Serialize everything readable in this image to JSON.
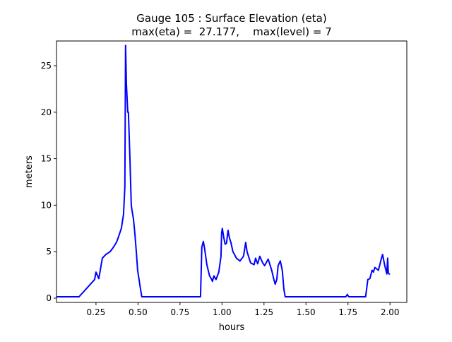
{
  "chart_data": {
    "type": "line",
    "title": "Gauge 105 : Surface Elevation (eta)",
    "subtitle": "max(eta) =  27.177,    max(level) = 7",
    "xlabel": "hours",
    "ylabel": "meters",
    "xlim": [
      0.015,
      2.1
    ],
    "ylim": [
      -0.46,
      27.66
    ],
    "xticks": [
      0.25,
      0.5,
      0.75,
      1.0,
      1.25,
      1.5,
      1.75,
      2.0
    ],
    "xtick_labels": [
      "0.25",
      "0.50",
      "0.75",
      "1.00",
      "1.25",
      "1.50",
      "1.75",
      "2.00"
    ],
    "yticks": [
      0,
      5,
      10,
      15,
      20,
      25
    ],
    "ytick_labels": [
      "0",
      "5",
      "10",
      "15",
      "20",
      "25"
    ],
    "grid": false,
    "series": [
      {
        "name": "eta",
        "color": "#0000ff",
        "x": [
          0.015,
          0.149,
          0.242,
          0.25,
          0.267,
          0.288,
          0.309,
          0.334,
          0.351,
          0.372,
          0.384,
          0.401,
          0.414,
          0.422,
          0.426,
          0.431,
          0.439,
          0.443,
          0.452,
          0.456,
          0.46,
          0.464,
          0.473,
          0.481,
          0.49,
          0.498,
          0.515,
          0.523,
          0.872,
          0.88,
          0.889,
          0.897,
          0.91,
          0.926,
          0.939,
          0.943,
          0.952,
          0.964,
          0.981,
          0.994,
          0.998,
          1.002,
          1.011,
          1.019,
          1.027,
          1.036,
          1.044,
          1.053,
          1.065,
          1.086,
          1.107,
          1.128,
          1.141,
          1.149,
          1.17,
          1.191,
          1.2,
          1.212,
          1.225,
          1.242,
          1.254,
          1.275,
          1.296,
          1.309,
          1.317,
          1.326,
          1.334,
          1.347,
          1.359,
          1.368,
          1.376,
          1.737,
          1.746,
          1.754,
          1.855,
          1.868,
          1.88,
          1.893,
          1.901,
          1.91,
          1.931,
          1.948,
          1.956,
          1.969,
          1.981,
          1.986,
          1.99,
          1.994,
          2.0
        ],
        "y": [
          0.15,
          0.15,
          2.0,
          2.8,
          2.1,
          4.3,
          4.7,
          5.0,
          5.4,
          6.0,
          6.6,
          7.5,
          9.0,
          12.0,
          27.18,
          23.0,
          20.0,
          20.0,
          15.0,
          12.5,
          10.0,
          9.5,
          8.5,
          7.0,
          5.0,
          3.0,
          1.0,
          0.15,
          0.15,
          5.5,
          6.1,
          5.3,
          3.6,
          2.4,
          2.0,
          1.8,
          2.4,
          2.0,
          2.8,
          4.5,
          7.0,
          7.5,
          6.5,
          5.8,
          5.9,
          7.3,
          6.5,
          6.0,
          5.0,
          4.3,
          4.0,
          4.5,
          6.0,
          5.0,
          3.8,
          3.6,
          4.3,
          3.7,
          4.5,
          3.8,
          3.5,
          4.2,
          3.0,
          2.0,
          1.5,
          2.0,
          3.5,
          4.0,
          3.0,
          1.0,
          0.15,
          0.15,
          0.4,
          0.15,
          0.15,
          2.0,
          2.1,
          3.0,
          2.8,
          3.3,
          3.0,
          4.2,
          4.7,
          3.5,
          2.6,
          4.3,
          2.7,
          2.6,
          2.6
        ]
      }
    ]
  }
}
